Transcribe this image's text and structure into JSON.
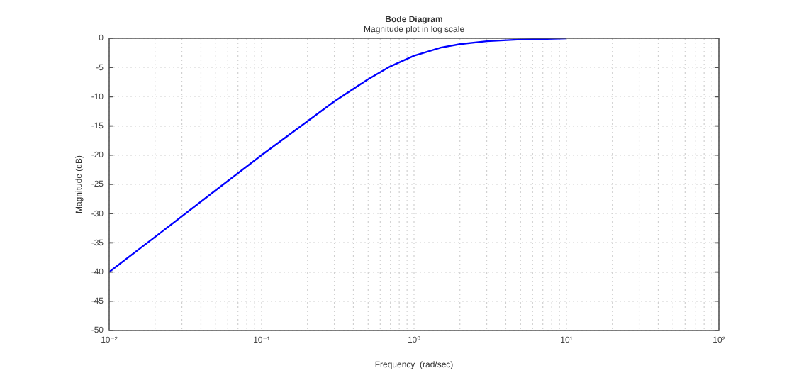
{
  "chart_data": {
    "type": "line",
    "title": "Bode Diagram",
    "subtitle": "Magnitude plot in log scale",
    "xlabel": "Frequency  (rad/sec)",
    "ylabel": "Magnitude (dB)",
    "x": [
      0.01,
      0.02,
      0.05,
      0.1,
      0.2,
      0.3,
      0.5,
      0.7,
      1,
      1.5,
      2,
      3,
      5,
      10
    ],
    "series": [
      {
        "color": "#0000ff",
        "values": [
          -40.0,
          -34.0,
          -26.0,
          -20.0,
          -14.2,
          -10.8,
          -7.0,
          -4.8,
          -3.0,
          -1.6,
          -1.0,
          -0.5,
          -0.2,
          0.0
        ]
      }
    ],
    "log": "x",
    "xlim": [
      0.01,
      100
    ],
    "xticks": [
      {
        "value": 0.01,
        "label": "10⁻²"
      },
      {
        "value": 0.1,
        "label": "10⁻¹"
      },
      {
        "value": 1,
        "label": "10⁰"
      },
      {
        "value": 10,
        "label": "10¹"
      },
      {
        "value": 100,
        "label": "10²"
      }
    ],
    "ylim": [
      -50,
      0
    ],
    "yticks": [
      -50,
      -45,
      -40,
      -35,
      -30,
      -25,
      -20,
      -15,
      -10,
      -5,
      0
    ],
    "grid": true,
    "legend": false,
    "marker": "none",
    "line_style": "solid"
  }
}
